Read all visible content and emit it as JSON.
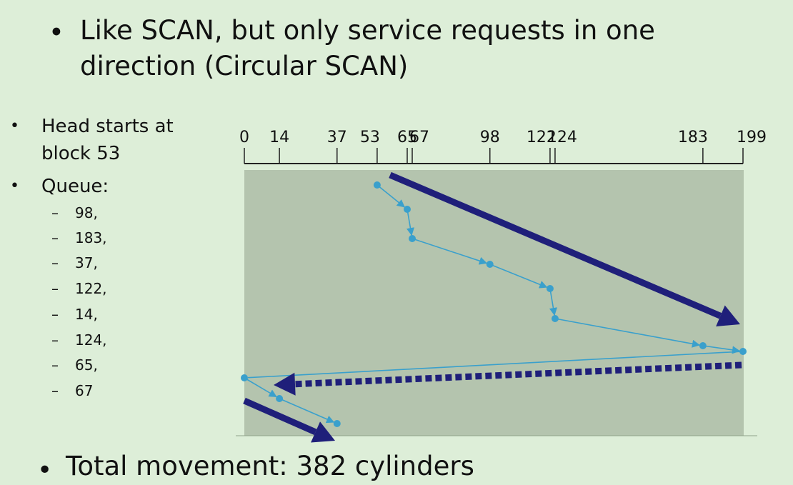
{
  "title": {
    "line1": "Like SCAN, but only service requests in one",
    "line2": "direction (Circular SCAN)"
  },
  "head": {
    "line1": "Head starts at",
    "line2": "block 53"
  },
  "queue": {
    "label": "Queue:",
    "items": [
      "98,",
      "183,",
      "37,",
      "122,",
      "14,",
      "124,",
      "65,",
      "67"
    ]
  },
  "total": "Total movement: 382 cylinders",
  "bullet_glyph": "•",
  "dash_glyph": "–",
  "colors": {
    "background": "#ddeed8",
    "plot_area": "#b4c4ae",
    "service_path": "#3aa0cc",
    "direction_arrow": "#1f1f7a"
  },
  "chart_data": {
    "type": "line",
    "axis_ticks": [
      0,
      14,
      37,
      53,
      65,
      67,
      98,
      122,
      124,
      183,
      199
    ],
    "xlim": [
      0,
      199
    ],
    "service_order": [
      53,
      65,
      67,
      98,
      122,
      124,
      183,
      199,
      0,
      14,
      37
    ],
    "arrows": [
      "solid direction arrow toward 199",
      "dashed return arrow toward 0",
      "solid direction arrow after return"
    ]
  }
}
